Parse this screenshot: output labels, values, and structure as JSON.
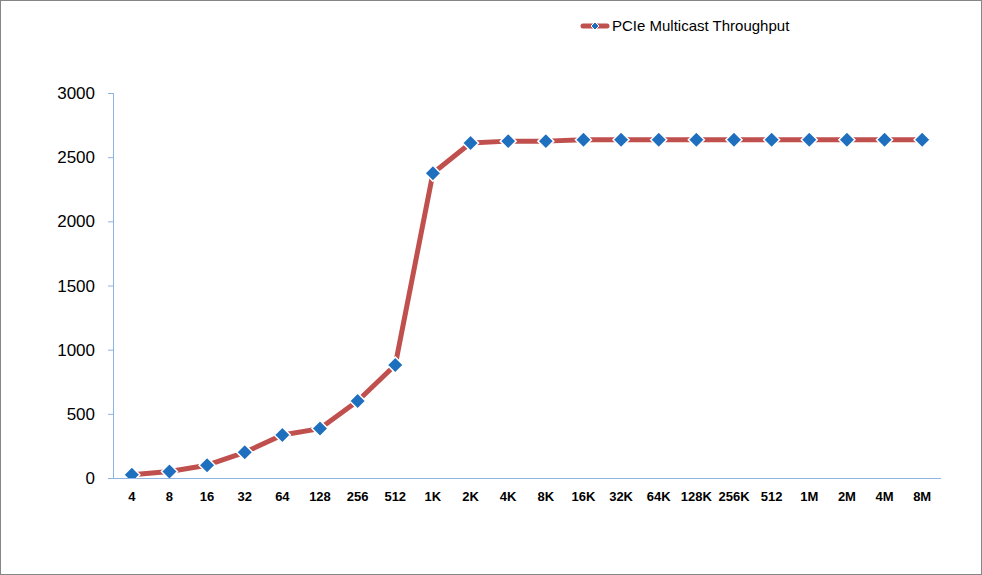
{
  "chart_data": {
    "type": "line",
    "categories": [
      "4",
      "8",
      "16",
      "32",
      "64",
      "128",
      "256",
      "512",
      "1K",
      "2K",
      "4K",
      "8K",
      "16K",
      "32K",
      "64K",
      "128K",
      "256K",
      "512",
      "1M",
      "2M",
      "4M",
      "8M"
    ],
    "series": [
      {
        "name": "PCIe Multicast Throughput",
        "color": "#c0504d",
        "values": [
          25,
          50,
          100,
          200,
          335,
          385,
          600,
          880,
          2375,
          2610,
          2625,
          2625,
          2635,
          2635,
          2635,
          2635,
          2635,
          2635,
          2635,
          2635,
          2635,
          2635
        ]
      }
    ],
    "ylim": [
      0,
      3000
    ],
    "yticks": [
      0,
      500,
      1000,
      1500,
      2000,
      2500,
      3000
    ],
    "grid": false,
    "legend": "top-right",
    "marker": "diamond"
  }
}
